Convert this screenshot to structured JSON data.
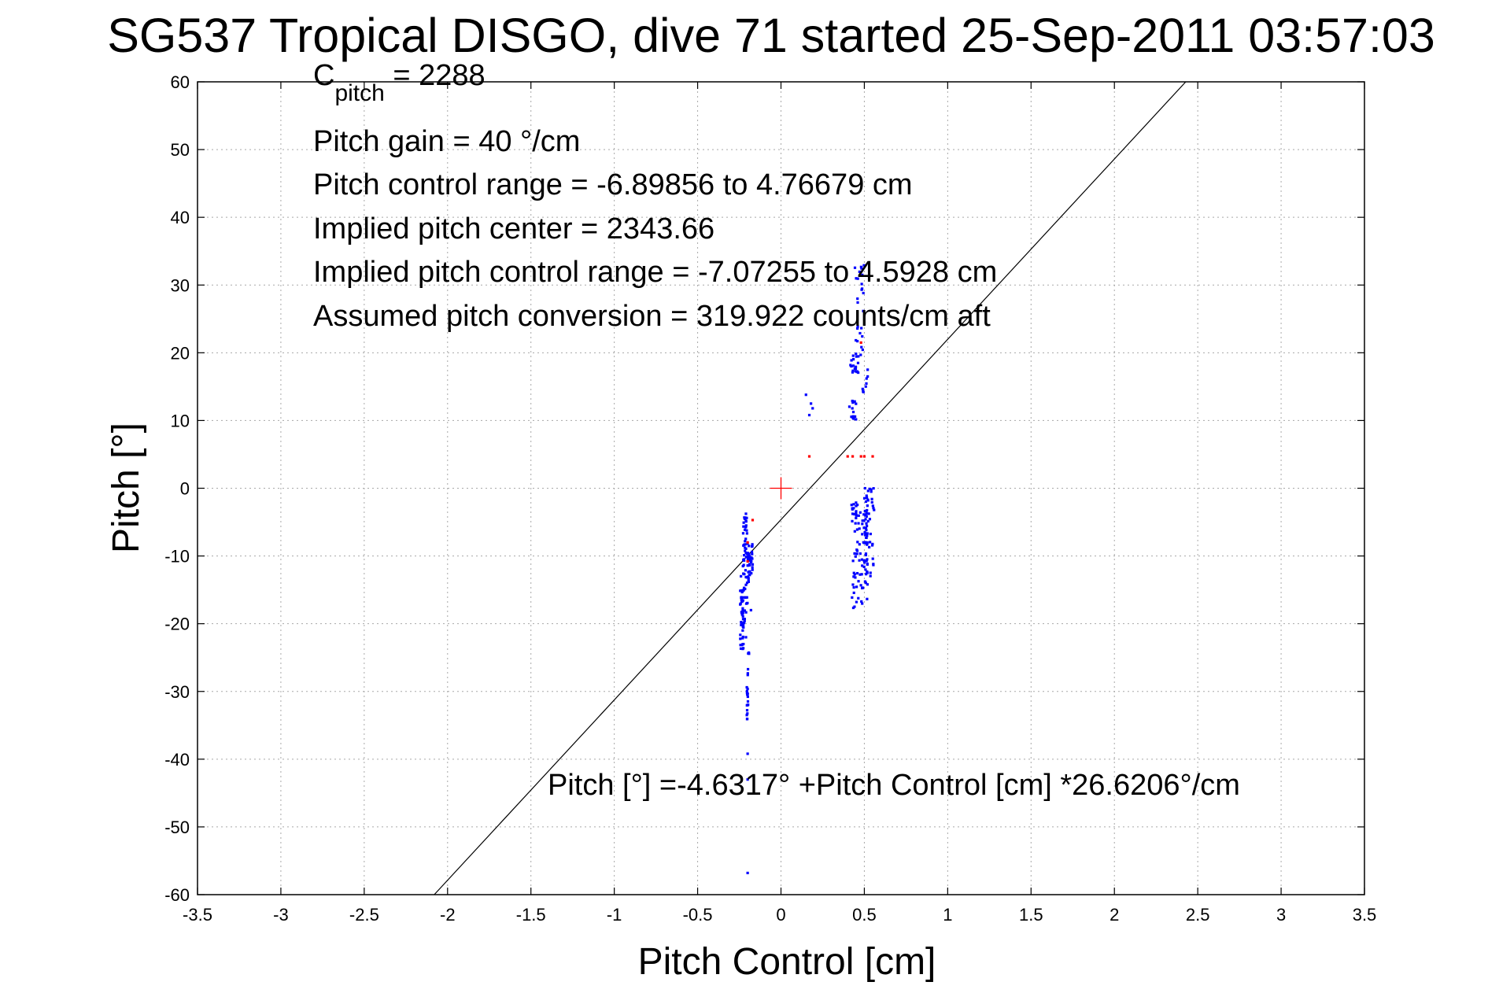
{
  "title": "SG537 Tropical DISGO, dive 71 started 25-Sep-2011 03:57:03",
  "chart_data": {
    "type": "scatter",
    "xlabel": "Pitch Control [cm]",
    "ylabel": "Pitch [°]",
    "xlim": [
      -3.5,
      3.5
    ],
    "ylim": [
      -60,
      60
    ],
    "xticks": [
      -3.5,
      -3,
      -2.5,
      -2,
      -1.5,
      -1,
      -0.5,
      0,
      0.5,
      1,
      1.5,
      2,
      2.5,
      3,
      3.5
    ],
    "xtick_labels": [
      "-3.5",
      "-3",
      "-2.5",
      "-2",
      "-1.5",
      "-1",
      "-0.5",
      "0",
      "0.5",
      "1",
      "1.5",
      "2",
      "2.5",
      "3",
      "3.5"
    ],
    "yticks": [
      -60,
      -50,
      -40,
      -30,
      -20,
      -10,
      0,
      10,
      20,
      30,
      40,
      50,
      60
    ],
    "ytick_labels": [
      "-60",
      "-50",
      "-40",
      "-30",
      "-20",
      "-10",
      "0",
      "10",
      "20",
      "30",
      "40",
      "50",
      "60"
    ],
    "grid": true,
    "annotations": {
      "c_pitch_main": "C",
      "c_pitch_sub": "pitch",
      "c_pitch_value": " = 2288",
      "lines": [
        "Pitch gain = 40 °/cm",
        "Pitch control range = -6.89856 to 4.76679 cm",
        "Implied pitch center = 2343.66",
        "Implied pitch control range = -7.07255 to 4.5928 cm",
        "Assumed pitch conversion = 319.922 counts/cm aft"
      ],
      "fit_equation": "Pitch [°] =-4.6317° +Pitch Control [cm] *26.6206°/cm"
    },
    "fit_line": {
      "intercept": -4.6317,
      "slope": 26.6206,
      "color": "#000000"
    },
    "center_marker": {
      "x": 0,
      "y": 0,
      "color": "#ff0000"
    },
    "series": [
      {
        "color": "#0000ff",
        "clusters": [
          {
            "x": [
              -0.245,
              -0.225
            ],
            "y": [
              -24,
              -15
            ],
            "n": 40
          },
          {
            "x": [
              -0.23,
              -0.2
            ],
            "y": [
              -20,
              -3.5
            ],
            "n": 60
          },
          {
            "x": [
              -0.2,
              -0.17
            ],
            "y": [
              -14,
              -8
            ],
            "n": 40
          },
          {
            "x": [
              -0.205,
              -0.195
            ],
            "y": [
              -35,
              -29
            ],
            "n": 16
          },
          {
            "x": [
              -0.2,
              -0.19
            ],
            "y": [
              -30,
              -24
            ],
            "n": 6
          },
          {
            "x": [
              0.42,
              0.52
            ],
            "y": [
              -18,
              -2
            ],
            "n": 90
          },
          {
            "x": [
              0.5,
              0.56
            ],
            "y": [
              -13,
              0
            ],
            "n": 50
          },
          {
            "x": [
              0.41,
              0.45
            ],
            "y": [
              10,
              13
            ],
            "n": 14
          },
          {
            "x": [
              0.41,
              0.48
            ],
            "y": [
              17,
              20
            ],
            "n": 20
          },
          {
            "x": [
              0.44,
              0.5
            ],
            "y": [
              20,
              33
            ],
            "n": 24
          },
          {
            "x": [
              0.48,
              0.52
            ],
            "y": [
              13,
              17
            ],
            "n": 6
          }
        ],
        "points": [
          [
            -0.2,
            -39.2
          ],
          [
            -0.2,
            -56.8
          ],
          [
            -0.2,
            -43
          ],
          [
            0.15,
            13.8
          ],
          [
            0.17,
            10.8
          ],
          [
            0.19,
            11.8
          ],
          [
            0.18,
            12.5
          ],
          [
            0.52,
            16.5
          ],
          [
            0.52,
            17.5
          ],
          [
            -0.18,
            -18
          ],
          [
            -0.21,
            -22
          ],
          [
            -0.24,
            -13
          ]
        ]
      },
      {
        "color": "#ff0000",
        "points": [
          [
            -0.2,
            -8
          ],
          [
            -0.17,
            -4.7
          ],
          [
            0.17,
            4.7
          ],
          [
            0.4,
            4.7
          ],
          [
            0.43,
            4.7
          ],
          [
            0.48,
            4.7
          ],
          [
            0.5,
            4.7
          ],
          [
            0.55,
            4.7
          ],
          [
            -0.2,
            -10.8
          ],
          [
            0.48,
            21.5
          ]
        ]
      }
    ]
  }
}
